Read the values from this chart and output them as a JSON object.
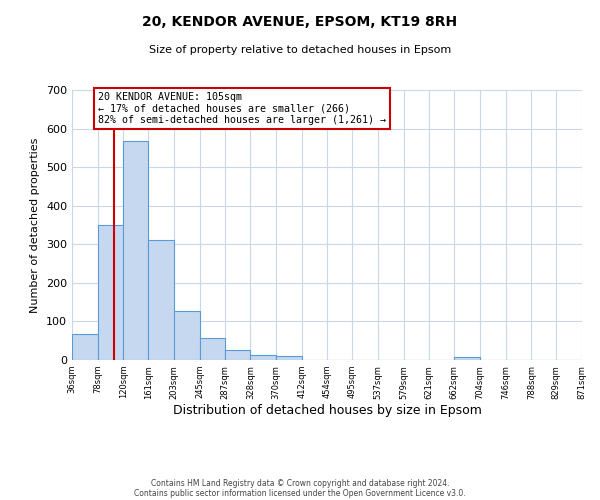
{
  "title": "20, KENDOR AVENUE, EPSOM, KT19 8RH",
  "subtitle": "Size of property relative to detached houses in Epsom",
  "xlabel": "Distribution of detached houses by size in Epsom",
  "ylabel": "Number of detached properties",
  "bar_values": [
    68,
    351,
    567,
    311,
    128,
    57,
    27,
    14,
    10,
    0,
    0,
    0,
    0,
    0,
    0,
    8,
    0,
    0,
    0,
    0
  ],
  "bin_edges": [
    36,
    78,
    120,
    161,
    203,
    245,
    287,
    328,
    370,
    412,
    454,
    495,
    537,
    579,
    621,
    662,
    704,
    746,
    788,
    829,
    871
  ],
  "tick_labels": [
    "36sqm",
    "78sqm",
    "120sqm",
    "161sqm",
    "203sqm",
    "245sqm",
    "287sqm",
    "328sqm",
    "370sqm",
    "412sqm",
    "454sqm",
    "495sqm",
    "537sqm",
    "579sqm",
    "621sqm",
    "662sqm",
    "704sqm",
    "746sqm",
    "788sqm",
    "829sqm",
    "871sqm"
  ],
  "bar_color": "#c5d8f0",
  "bar_edge_color": "#5b9bd5",
  "ylim": [
    0,
    700
  ],
  "yticks": [
    0,
    100,
    200,
    300,
    400,
    500,
    600,
    700
  ],
  "vline_x": 105,
  "vline_color": "#cc0000",
  "annotation_title": "20 KENDOR AVENUE: 105sqm",
  "annotation_line1": "← 17% of detached houses are smaller (266)",
  "annotation_line2": "82% of semi-detached houses are larger (1,261) →",
  "annotation_box_color": "#ffffff",
  "annotation_box_edge": "#cc0000",
  "footer1": "Contains HM Land Registry data © Crown copyright and database right 2024.",
  "footer2": "Contains public sector information licensed under the Open Government Licence v3.0.",
  "background_color": "#ffffff",
  "grid_color": "#c8d8e8"
}
